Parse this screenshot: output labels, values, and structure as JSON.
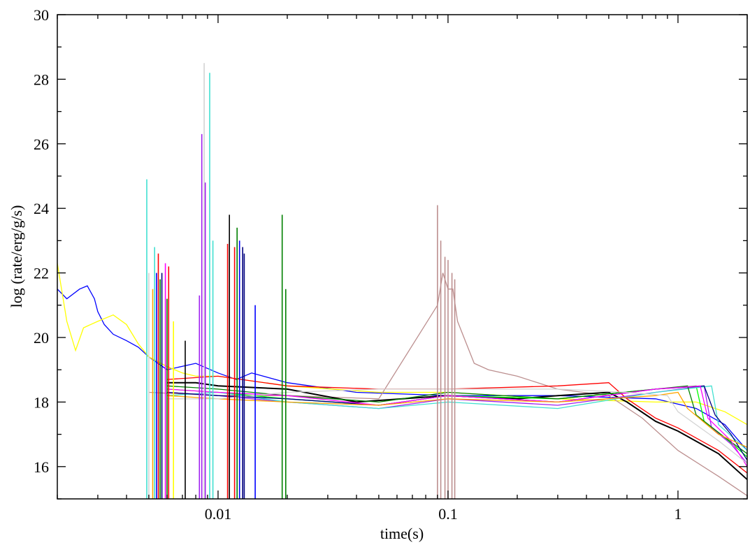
{
  "chart_data": {
    "type": "line",
    "title": "",
    "xlabel": "time(s)",
    "ylabel": "log (rate/erg/g/s)",
    "x_scale": "log",
    "xlim": [
      0.002,
      2.0
    ],
    "ylim": [
      15,
      30
    ],
    "x_ticks": [
      0.01,
      0.1,
      1
    ],
    "x_tick_labels": [
      "0.01",
      "0.1",
      "1"
    ],
    "y_ticks": [
      16,
      18,
      20,
      22,
      24,
      26,
      28,
      30
    ],
    "y_tick_labels": [
      "16",
      "18",
      "20",
      "22",
      "24",
      "26",
      "28",
      "30"
    ],
    "grid": false,
    "legend": "none",
    "series": [
      {
        "color": "#0000ff",
        "x": [
          0.002,
          0.0022,
          0.0025,
          0.0027,
          0.0029,
          0.003,
          0.0032,
          0.0035,
          0.004,
          0.0045,
          0.005,
          0.006,
          0.008,
          0.01,
          0.012,
          0.014,
          0.02,
          0.04,
          0.1,
          0.3,
          0.8,
          1.2,
          1.6,
          2.0
        ],
        "y": [
          21.5,
          21.2,
          21.5,
          21.6,
          21.2,
          20.8,
          20.4,
          20.1,
          19.9,
          19.7,
          19.4,
          19.0,
          19.2,
          18.9,
          18.7,
          18.9,
          18.6,
          18.3,
          18.2,
          18.2,
          18.1,
          17.8,
          17.3,
          16.5
        ]
      },
      {
        "color": "#ffff00",
        "x": [
          0.002,
          0.0022,
          0.0024,
          0.0026,
          0.003,
          0.0035,
          0.004,
          0.0045,
          0.005,
          0.006,
          0.007,
          0.008,
          0.01,
          0.02,
          0.05,
          0.1,
          0.3,
          0.8,
          1.2,
          1.6,
          2.0
        ],
        "y": [
          22.3,
          20.5,
          19.6,
          20.3,
          20.5,
          20.7,
          20.4,
          19.8,
          19.4,
          19.1,
          18.9,
          18.8,
          18.8,
          18.5,
          18.3,
          18.3,
          18.1,
          18.0,
          18.0,
          17.7,
          17.3
        ]
      },
      {
        "color": "#bc8f8f",
        "x": [
          0.005,
          0.01,
          0.02,
          0.05,
          0.09,
          0.095,
          0.1,
          0.105,
          0.11,
          0.13,
          0.15,
          0.2,
          0.3,
          0.5,
          0.7,
          1.0,
          1.5,
          2.0
        ],
        "y": [
          18.3,
          18.2,
          18.2,
          18.1,
          21.0,
          22.0,
          21.5,
          21.5,
          20.5,
          19.2,
          19.0,
          18.8,
          18.4,
          18.2,
          17.5,
          16.5,
          15.7,
          15.1
        ]
      },
      {
        "color": "#000000",
        "x": [
          0.006,
          0.008,
          0.01,
          0.02,
          0.04,
          0.1,
          0.2,
          0.3,
          0.5,
          0.6,
          0.8,
          1.0,
          1.5,
          2.0
        ],
        "y": [
          18.6,
          18.6,
          18.5,
          18.4,
          18.0,
          18.2,
          18.1,
          18.2,
          18.3,
          18.0,
          17.4,
          17.1,
          16.4,
          15.6
        ]
      },
      {
        "color": "#ff0000",
        "x": [
          0.006,
          0.01,
          0.02,
          0.05,
          0.1,
          0.3,
          0.5,
          0.6,
          0.8,
          1.0,
          1.5,
          2.0
        ],
        "y": [
          18.7,
          18.8,
          18.5,
          18.4,
          18.4,
          18.5,
          18.6,
          18.1,
          17.5,
          17.2,
          16.5,
          15.8
        ]
      },
      {
        "color": "#00ff00",
        "x": [
          0.006,
          0.01,
          0.02,
          0.05,
          0.1,
          0.3,
          0.8,
          1.2,
          1.3,
          1.6,
          2.0
        ],
        "y": [
          18.4,
          18.3,
          18.1,
          17.9,
          18.2,
          18.1,
          18.4,
          18.5,
          17.4,
          16.9,
          16.3
        ]
      },
      {
        "color": "#a020f0",
        "x": [
          0.006,
          0.01,
          0.02,
          0.05,
          0.1,
          0.3,
          0.8,
          1.3,
          1.4,
          1.7,
          2.0
        ],
        "y": [
          18.3,
          18.2,
          18.0,
          17.8,
          18.1,
          17.9,
          18.3,
          18.5,
          17.2,
          16.7,
          16.1
        ]
      },
      {
        "color": "#40e0d0",
        "x": [
          0.006,
          0.01,
          0.02,
          0.05,
          0.1,
          0.3,
          0.8,
          1.4,
          1.5,
          1.8,
          2.0
        ],
        "y": [
          18.2,
          18.3,
          18.0,
          17.8,
          18.0,
          17.8,
          18.3,
          18.5,
          17.3,
          16.8,
          16.5
        ]
      },
      {
        "color": "#008000",
        "x": [
          0.006,
          0.01,
          0.02,
          0.05,
          0.1,
          0.3,
          0.8,
          1.1,
          1.2,
          1.6,
          2.0
        ],
        "y": [
          18.5,
          18.4,
          18.2,
          18.0,
          18.3,
          18.1,
          18.4,
          18.5,
          17.6,
          16.9,
          16.4
        ]
      },
      {
        "color": "#000080",
        "x": [
          0.006,
          0.01,
          0.02,
          0.05,
          0.1,
          0.3,
          0.8,
          1.3,
          1.45,
          1.7,
          2.0
        ],
        "y": [
          18.3,
          18.2,
          18.1,
          17.9,
          18.2,
          18.0,
          18.4,
          18.5,
          17.6,
          17.0,
          16.2
        ]
      },
      {
        "color": "#ff00ff",
        "x": [
          0.006,
          0.01,
          0.02,
          0.05,
          0.1,
          0.3,
          0.8,
          1.25,
          1.35,
          1.7,
          2.0
        ],
        "y": [
          18.4,
          18.3,
          18.2,
          17.9,
          18.2,
          18.0,
          18.4,
          18.5,
          17.5,
          16.8,
          16.0
        ]
      },
      {
        "color": "#ffa500",
        "x": [
          0.006,
          0.01,
          0.02,
          0.05,
          0.1,
          0.3,
          0.8,
          1.0,
          1.1,
          1.5,
          2.0
        ],
        "y": [
          18.2,
          18.1,
          18.0,
          17.9,
          18.1,
          18.0,
          18.2,
          18.3,
          17.8,
          17.0,
          16.6
        ]
      },
      {
        "color": "#d3d3d3",
        "x": [
          0.006,
          0.01,
          0.02,
          0.05,
          0.1,
          0.3,
          0.6,
          0.9,
          1.0,
          1.5,
          2.0
        ],
        "y": [
          18.1,
          18.1,
          18.3,
          18.4,
          18.4,
          18.4,
          18.3,
          18.2,
          17.7,
          16.8,
          16.1
        ]
      }
    ],
    "spikes": [
      {
        "color": "#40e0d0",
        "x": 0.0049,
        "top": 24.9
      },
      {
        "color": "#d3d3d3",
        "x": 0.005,
        "top": 22.0
      },
      {
        "color": "#ffa500",
        "x": 0.0052,
        "top": 21.5
      },
      {
        "color": "#40e0d0",
        "x": 0.0053,
        "top": 22.8
      },
      {
        "color": "#0000ff",
        "x": 0.0054,
        "top": 22.0
      },
      {
        "color": "#ff0000",
        "x": 0.0055,
        "top": 22.6
      },
      {
        "color": "#008000",
        "x": 0.0056,
        "top": 21.8
      },
      {
        "color": "#000080",
        "x": 0.0057,
        "top": 22.0
      },
      {
        "color": "#ff00ff",
        "x": 0.0059,
        "top": 22.3
      },
      {
        "color": "#008000",
        "x": 0.006,
        "top": 21.2
      },
      {
        "color": "#ff0000",
        "x": 0.0061,
        "top": 22.2
      },
      {
        "color": "#ffff00",
        "x": 0.0064,
        "top": 20.5
      },
      {
        "color": "#000000",
        "x": 0.0072,
        "top": 19.9
      },
      {
        "color": "#a020f0",
        "x": 0.0083,
        "top": 21.3
      },
      {
        "color": "#a020f0",
        "x": 0.0085,
        "top": 26.3
      },
      {
        "color": "#d3d3d3",
        "x": 0.0087,
        "top": 28.5
      },
      {
        "color": "#a020f0",
        "x": 0.0088,
        "top": 24.8
      },
      {
        "color": "#40e0d0",
        "x": 0.0092,
        "top": 28.2
      },
      {
        "color": "#40e0d0",
        "x": 0.0095,
        "top": 23.0
      },
      {
        "color": "#ff0000",
        "x": 0.011,
        "top": 22.9
      },
      {
        "color": "#000000",
        "x": 0.0112,
        "top": 23.8
      },
      {
        "color": "#ff0000",
        "x": 0.0118,
        "top": 22.8
      },
      {
        "color": "#008000",
        "x": 0.0121,
        "top": 23.4
      },
      {
        "color": "#0000ff",
        "x": 0.0124,
        "top": 23.0
      },
      {
        "color": "#000080",
        "x": 0.0128,
        "top": 22.8
      },
      {
        "color": "#000080",
        "x": 0.013,
        "top": 22.6
      },
      {
        "color": "#0000ff",
        "x": 0.0145,
        "top": 21.0
      },
      {
        "color": "#008000",
        "x": 0.019,
        "top": 23.8
      },
      {
        "color": "#008000",
        "x": 0.0197,
        "top": 21.5
      },
      {
        "color": "#bc8f8f",
        "x": 0.09,
        "top": 24.1
      },
      {
        "color": "#bc8f8f",
        "x": 0.093,
        "top": 23.0
      },
      {
        "color": "#bc8f8f",
        "x": 0.097,
        "top": 22.5
      },
      {
        "color": "#bc8f8f",
        "x": 0.1,
        "top": 22.4
      },
      {
        "color": "#bc8f8f",
        "x": 0.104,
        "top": 22.0
      },
      {
        "color": "#bc8f8f",
        "x": 0.107,
        "top": 21.8
      }
    ]
  }
}
